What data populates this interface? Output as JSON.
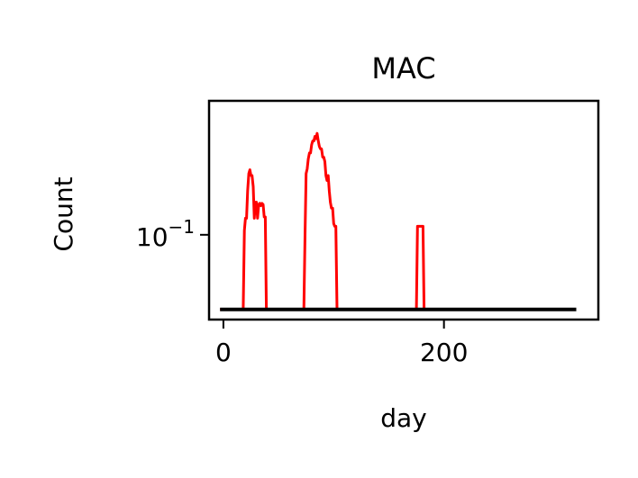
{
  "chart_data": {
    "type": "line",
    "title": "MAC",
    "xlabel": "day",
    "ylabel": "Count",
    "x_ticks": [
      {
        "value": 0,
        "label": "0"
      },
      {
        "value": 200,
        "label": "200"
      }
    ],
    "y_ticks": [
      {
        "value": 0.1,
        "base": "10",
        "exponent": "−1"
      }
    ],
    "xlim": [
      -13,
      340
    ],
    "ylim": [
      0.056,
      0.25
    ],
    "y_scale": "log",
    "grid": false,
    "colors": {
      "series_1": "#ff0000",
      "series_2": "#000000"
    },
    "series": [
      {
        "color": "#ff0000",
        "x": [
          -3,
          18,
          19,
          20,
          21,
          22,
          23,
          24,
          25,
          26,
          27,
          28,
          29,
          30,
          31,
          32,
          33,
          34,
          35,
          36,
          37,
          38,
          39,
          40,
          41,
          42,
          72,
          73,
          74,
          75,
          76,
          77,
          78,
          79,
          80,
          81,
          82,
          83,
          84,
          85,
          86,
          87,
          88,
          89,
          90,
          91,
          92,
          93,
          94,
          95,
          96,
          97,
          98,
          99,
          100,
          101,
          102,
          103,
          104,
          175,
          176,
          177,
          178,
          179,
          180,
          181,
          182,
          183,
          320
        ],
        "y": [
          0.06,
          0.06,
          0.103,
          0.112,
          0.112,
          0.135,
          0.152,
          0.156,
          0.15,
          0.15,
          0.139,
          0.112,
          0.125,
          0.125,
          0.112,
          0.123,
          0.124,
          0.122,
          0.124,
          0.123,
          0.113,
          0.113,
          0.06,
          0.06,
          0.06,
          0.06,
          0.06,
          0.06,
          0.1,
          0.152,
          0.157,
          0.168,
          0.175,
          0.175,
          0.185,
          0.19,
          0.19,
          0.196,
          0.193,
          0.2,
          0.19,
          0.183,
          0.18,
          0.18,
          0.17,
          0.17,
          0.165,
          0.15,
          0.145,
          0.15,
          0.135,
          0.125,
          0.12,
          0.12,
          0.108,
          0.106,
          0.106,
          0.06,
          0.06,
          0.06,
          0.106,
          0.106,
          0.106,
          0.106,
          0.106,
          0.106,
          0.06,
          0.06,
          0.06
        ]
      },
      {
        "color": "#000000",
        "x": [
          -3,
          320
        ],
        "y": [
          0.06,
          0.06
        ]
      }
    ]
  }
}
